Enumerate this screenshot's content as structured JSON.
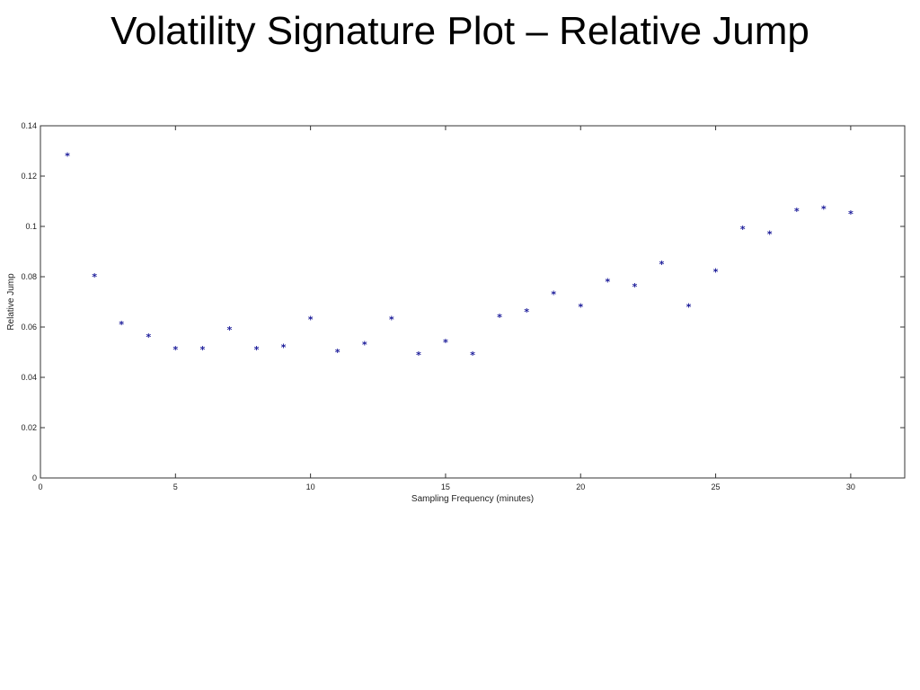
{
  "page": {
    "title": "Volatility Signature Plot – Relative Jump"
  },
  "chart_data": {
    "type": "scatter",
    "title": "",
    "xlabel": "Sampling Frequency (minutes)",
    "ylabel": "Relative Jump",
    "xlim": [
      0,
      32
    ],
    "ylim": [
      0,
      0.14
    ],
    "xticks": [
      0,
      5,
      10,
      15,
      20,
      25,
      30
    ],
    "yticks": [
      0,
      0.02,
      0.04,
      0.06,
      0.08,
      0.1,
      0.12,
      0.14
    ],
    "grid": false,
    "marker": "*",
    "color": "#1a1a99",
    "x": [
      1,
      2,
      3,
      4,
      5,
      6,
      7,
      8,
      9,
      10,
      11,
      12,
      13,
      14,
      15,
      16,
      17,
      18,
      19,
      20,
      21,
      22,
      23,
      24,
      25,
      26,
      27,
      28,
      29,
      30
    ],
    "y": [
      0.128,
      0.08,
      0.061,
      0.056,
      0.051,
      0.051,
      0.059,
      0.051,
      0.052,
      0.063,
      0.05,
      0.053,
      0.063,
      0.049,
      0.054,
      0.049,
      0.064,
      0.066,
      0.073,
      0.068,
      0.078,
      0.076,
      0.085,
      0.068,
      0.082,
      0.099,
      0.097,
      0.106,
      0.107,
      0.105
    ]
  }
}
